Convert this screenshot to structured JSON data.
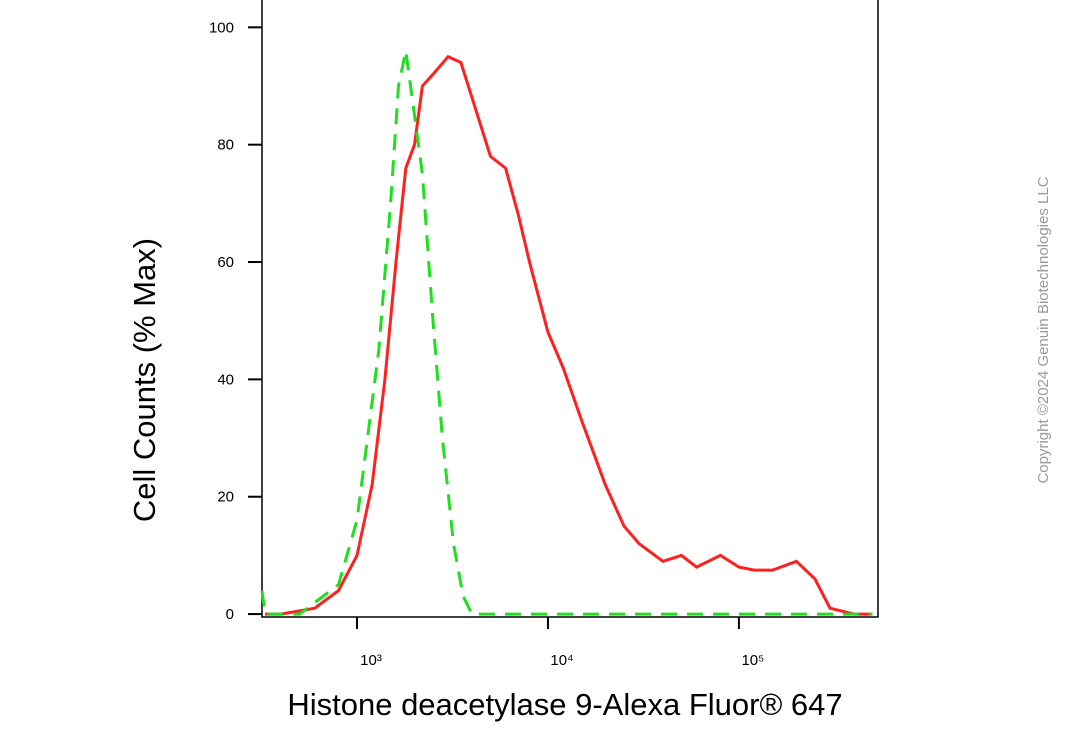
{
  "chart_data": {
    "type": "line",
    "xlabel": "Histone deacetylase 9-Alexa Fluor® 647",
    "ylabel": "Cell Counts (% Max)",
    "watermark": "Copyright ©2024 Genuin Biotechnologies LLC",
    "xscale": "log",
    "xlim": [
      318,
      535000
    ],
    "ylim": [
      -0.5,
      105
    ],
    "xticks": [
      {
        "value": 1000,
        "label": "10³"
      },
      {
        "value": 10000,
        "label": "10⁴"
      },
      {
        "value": 100000,
        "label": "10⁵"
      }
    ],
    "yticks": [
      0,
      20,
      40,
      60,
      80,
      100
    ],
    "series": [
      {
        "color": "#ff2020",
        "dashed": false,
        "x": [
          330,
          400,
          600,
          800,
          1000,
          1200,
          1400,
          1600,
          1800,
          2000,
          2200,
          2500,
          3000,
          3500,
          4000,
          5000,
          6000,
          7000,
          8000,
          10000,
          12000,
          15000,
          20000,
          25000,
          30000,
          40000,
          50000,
          60000,
          80000,
          100000,
          120000,
          150000,
          200000,
          250000,
          300000,
          400000,
          500000
        ],
        "values": [
          0,
          0,
          1,
          4,
          10,
          22,
          40,
          60,
          76,
          80,
          90,
          92,
          95,
          94,
          88,
          78,
          76,
          68,
          60,
          48,
          42,
          33,
          22,
          15,
          12,
          9,
          10,
          8,
          10,
          8,
          7.5,
          7.5,
          9,
          6,
          1,
          0,
          0
        ]
      },
      {
        "color": "#22dd22",
        "dashed": true,
        "x": [
          318,
          330,
          500,
          800,
          1000,
          1300,
          1500,
          1650,
          1800,
          2000,
          2200,
          2500,
          2800,
          3200,
          3600,
          4000,
          10000,
          100000,
          500000
        ],
        "values": [
          4,
          0,
          0,
          5,
          16,
          45,
          70,
          90,
          96,
          85,
          75,
          50,
          30,
          12,
          3,
          0,
          0,
          0,
          0
        ]
      }
    ]
  }
}
